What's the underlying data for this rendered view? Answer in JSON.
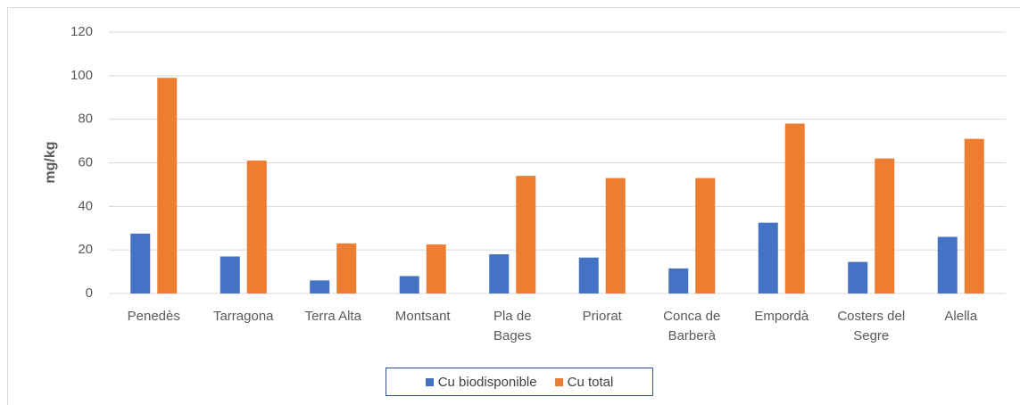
{
  "chart_data": {
    "type": "bar",
    "y_label": "mg/kg",
    "categories": [
      "Penedès",
      "Tarragona",
      "Terra Alta",
      "Montsant",
      "Pla de\nBages",
      "Priorat",
      "Conca de\nBarberà",
      "Empordà",
      "Costers del\nSegre",
      "Alella"
    ],
    "series": [
      {
        "name": "Cu biodisponible",
        "color": "#4472c4",
        "values": [
          27.5,
          17,
          6,
          8,
          18,
          16.5,
          11.5,
          32.5,
          14.5,
          26
        ]
      },
      {
        "name": "Cu total",
        "color": "#ed7d31",
        "values": [
          99,
          61,
          23,
          22.5,
          54,
          53,
          53,
          78,
          62,
          71
        ]
      }
    ],
    "ylim": [
      0,
      120
    ],
    "yticks": [
      0,
      20,
      40,
      60,
      80,
      100,
      120
    ],
    "grid": true
  }
}
